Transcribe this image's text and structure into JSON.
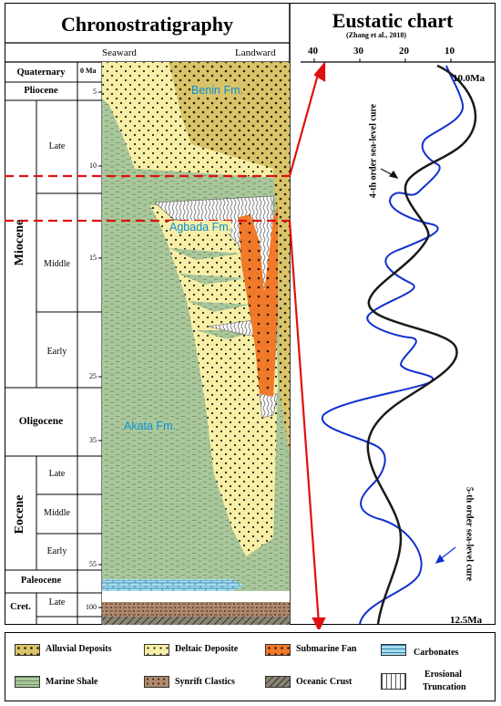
{
  "titles": {
    "left": "Chronostratigraphy",
    "right": "Eustatic chart",
    "citation": "(Zhang et al., 2018)",
    "seaward": "Seaward",
    "landward": "Landward"
  },
  "age_unit_label": "0 Ma",
  "epochs": {
    "quaternary": "Quaternary",
    "pliocene": "Pliocene",
    "miocene": "Miocene",
    "oligocene": "Oligocene",
    "eocene": "Eocene",
    "paleocene": "Paleocene",
    "cretaceous": "Cret."
  },
  "subdivisions": {
    "miocene_late": "Late",
    "miocene_middle": "Middle",
    "miocene_early": "Early",
    "eocene_late": "Late",
    "eocene_middle": "Middle",
    "eocene_early": "Early",
    "cret_late": "Late"
  },
  "ages": [
    "5",
    "10",
    "15",
    "25",
    "35",
    "55",
    "100"
  ],
  "formations": {
    "benin": "Benin Fm.",
    "agbada": "Agbada Fm.",
    "akata": "Akata Fm."
  },
  "eustatic": {
    "axis_ticks": [
      "40",
      "30",
      "20",
      "10"
    ],
    "top_age": "10.0Ma",
    "bottom_age": "12.5Ma",
    "curve4_label": "4-th order sea-level cure",
    "curve5_label": "5-th order sea-level cure"
  },
  "legend": {
    "alluvial": "Alluvial Deposits",
    "deltaic": "Deltaic Deposite",
    "submarine": "Submarine Fan",
    "carbonates": "Carbonates",
    "shale": "Marine Shale",
    "synrift": "Synrift Clastics",
    "oceanic": "Oceanic Crust",
    "erosional_1": "Erosional",
    "erosional_2": "Truncation"
  },
  "colors": {
    "alluvial": "#d9c46a",
    "deltaic": "#f8efa6",
    "submarine": "#f07a2a",
    "carbonates": "#a9dcf0",
    "shale": "#a9c79a",
    "synrift": "#b08a6e",
    "curve4": "#1a1a1a",
    "curve5": "#1030d0",
    "highlight": "#e01010"
  }
}
